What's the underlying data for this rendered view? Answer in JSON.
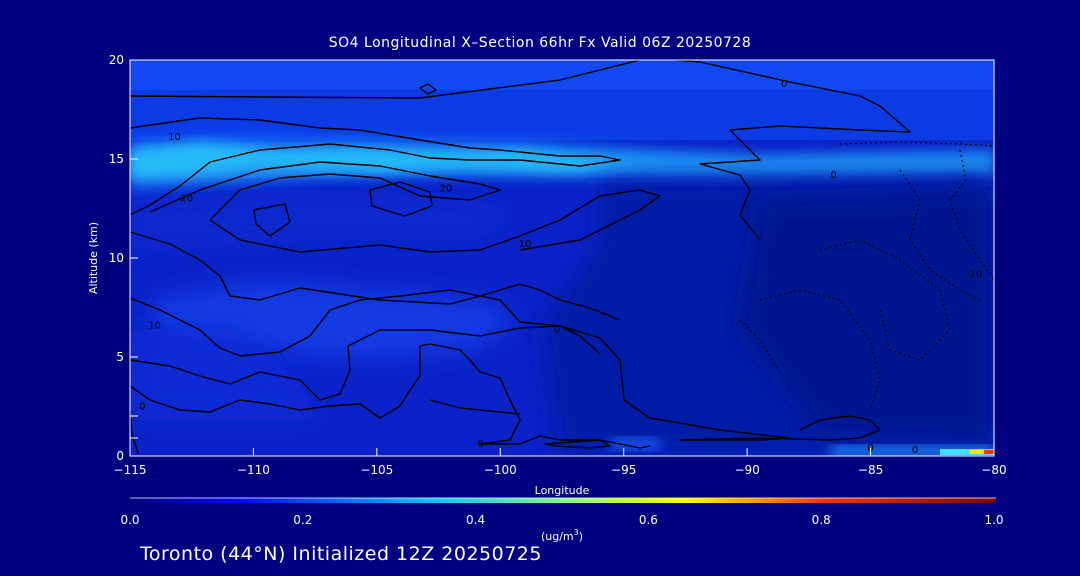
{
  "chart_data": {
    "type": "heatmap",
    "title": "SO4 Longitudinal X–Section 66hr  Fx Valid 06Z 20250728",
    "xlabel": "Longitude",
    "ylabel": "Altitude (km)",
    "xlim": [
      -115,
      -80
    ],
    "ylim": [
      0,
      20
    ],
    "x_ticks": [
      -115,
      -110,
      -105,
      -100,
      -95,
      -90,
      -85,
      -80
    ],
    "x_tick_labels": [
      "−115",
      "−110",
      "−105",
      "−100",
      "−95",
      "−90",
      "−85",
      "−80"
    ],
    "y_ticks": [
      0,
      5,
      10,
      15,
      20
    ],
    "y_tick_labels": [
      "0",
      "5",
      "10",
      "15",
      "20"
    ],
    "colorbar": {
      "min": 0.0,
      "max": 1.0,
      "ticks": [
        0.0,
        0.2,
        0.4,
        0.6,
        0.8,
        1.0
      ],
      "tick_labels": [
        "0.0",
        "0.2",
        "0.4",
        "0.6",
        "0.8",
        "1.0"
      ],
      "unit_label": "(ug/m",
      "unit_exp": "3",
      "unit_close": ")"
    },
    "contour_labels": [
      {
        "text": "0",
        "lon": -88.5,
        "alt": 18.8
      },
      {
        "text": "10",
        "lon": -113.2,
        "alt": 16.1
      },
      {
        "text": "20",
        "lon": -112.7,
        "alt": 13.0
      },
      {
        "text": "20",
        "lon": -102.2,
        "alt": 13.5
      },
      {
        "text": "10",
        "lon": -99.0,
        "alt": 10.7
      },
      {
        "text": "0",
        "lon": -86.5,
        "alt": 14.2
      },
      {
        "text": "-10",
        "lon": -80.8,
        "alt": 9.2
      },
      {
        "text": "10",
        "lon": -114.0,
        "alt": 6.6
      },
      {
        "text": "0",
        "lon": -97.7,
        "alt": 6.4
      },
      {
        "text": "0",
        "lon": -114.5,
        "alt": 2.5
      },
      {
        "text": "0",
        "lon": -100.8,
        "alt": 0.6
      },
      {
        "text": "0",
        "lon": -85.0,
        "alt": 0.4
      },
      {
        "text": "0",
        "lon": -83.2,
        "alt": 0.3
      }
    ]
  },
  "footer": "Toronto (44°N) Initialized 12Z 20250725"
}
